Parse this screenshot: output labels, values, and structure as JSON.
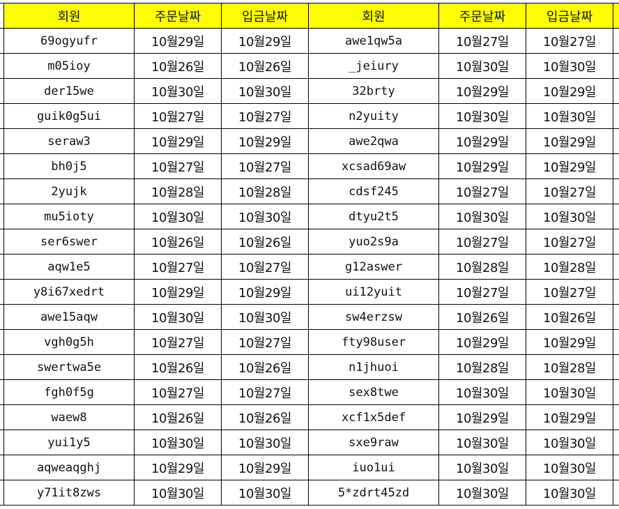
{
  "header": [
    "회원",
    "주문날짜",
    "입금날짜",
    "회원",
    "주문날짜",
    "입금날짜"
  ],
  "colors": {
    "header_bg": "#ffff00",
    "grid": "#000000"
  },
  "rows": [
    {
      "left": [
        "69ogyufr",
        "10월29일",
        "10월29일"
      ],
      "right": [
        "awe1qw5a",
        "10월27일",
        "10월27일"
      ]
    },
    {
      "left": [
        "m05ioy",
        "10월26일",
        "10월26일"
      ],
      "right": [
        "_jeiury",
        "10월30일",
        "10월30일"
      ]
    },
    {
      "left": [
        "der15we",
        "10월30일",
        "10월30일"
      ],
      "right": [
        "32brty",
        "10월29일",
        "10월29일"
      ]
    },
    {
      "left": [
        "guik0g5ui",
        "10월27일",
        "10월27일"
      ],
      "right": [
        "n2yuity",
        "10월30일",
        "10월30일"
      ]
    },
    {
      "left": [
        "seraw3",
        "10월29일",
        "10월29일"
      ],
      "right": [
        "awe2qwa",
        "10월29일",
        "10월29일"
      ]
    },
    {
      "left": [
        "bh0j5",
        "10월27일",
        "10월27일"
      ],
      "right": [
        "xcsad69aw",
        "10월29일",
        "10월29일"
      ]
    },
    {
      "left": [
        "2yujk",
        "10월28일",
        "10월28일"
      ],
      "right": [
        "cdsf245",
        "10월27일",
        "10월27일"
      ]
    },
    {
      "left": [
        "mu5ioty",
        "10월30일",
        "10월30일"
      ],
      "right": [
        "dtyu2t5",
        "10월30일",
        "10월30일"
      ]
    },
    {
      "left": [
        "ser6swer",
        "10월26일",
        "10월26일"
      ],
      "right": [
        "yuo2s9a",
        "10월27일",
        "10월27일"
      ]
    },
    {
      "left": [
        "aqw1e5",
        "10월27일",
        "10월27일"
      ],
      "right": [
        "g12aswer",
        "10월28일",
        "10월28일"
      ]
    },
    {
      "left": [
        "y8i67xedrt",
        "10월29일",
        "10월29일"
      ],
      "right": [
        "ui12yuit",
        "10월27일",
        "10월27일"
      ]
    },
    {
      "left": [
        "awe15aqw",
        "10월30일",
        "10월30일"
      ],
      "right": [
        "sw4erzsw",
        "10월26일",
        "10월26일"
      ]
    },
    {
      "left": [
        "vgh0g5h",
        "10월27일",
        "10월27일"
      ],
      "right": [
        "fty98user",
        "10월29일",
        "10월29일"
      ]
    },
    {
      "left": [
        "swertwa5e",
        "10월26일",
        "10월26일"
      ],
      "right": [
        "n1jhuoi",
        "10월28일",
        "10월28일"
      ]
    },
    {
      "left": [
        "fgh0f5g",
        "10월27일",
        "10월27일"
      ],
      "right": [
        "sex8twe",
        "10월30일",
        "10월30일"
      ]
    },
    {
      "left": [
        "waew8",
        "10월26일",
        "10월26일"
      ],
      "right": [
        "xcf1x5def",
        "10월29일",
        "10월29일"
      ]
    },
    {
      "left": [
        "yui1y5",
        "10월30일",
        "10월30일"
      ],
      "right": [
        "sxe9raw",
        "10월30일",
        "10월30일"
      ]
    },
    {
      "left": [
        "aqweaqghj",
        "10월29일",
        "10월29일"
      ],
      "right": [
        "iuo1ui",
        "10월30일",
        "10월30일"
      ]
    },
    {
      "left": [
        "y71it8zws",
        "10월30일",
        "10월30일"
      ],
      "right": [
        "5*zdrt45zd",
        "10월30일",
        "10월30일"
      ]
    }
  ]
}
